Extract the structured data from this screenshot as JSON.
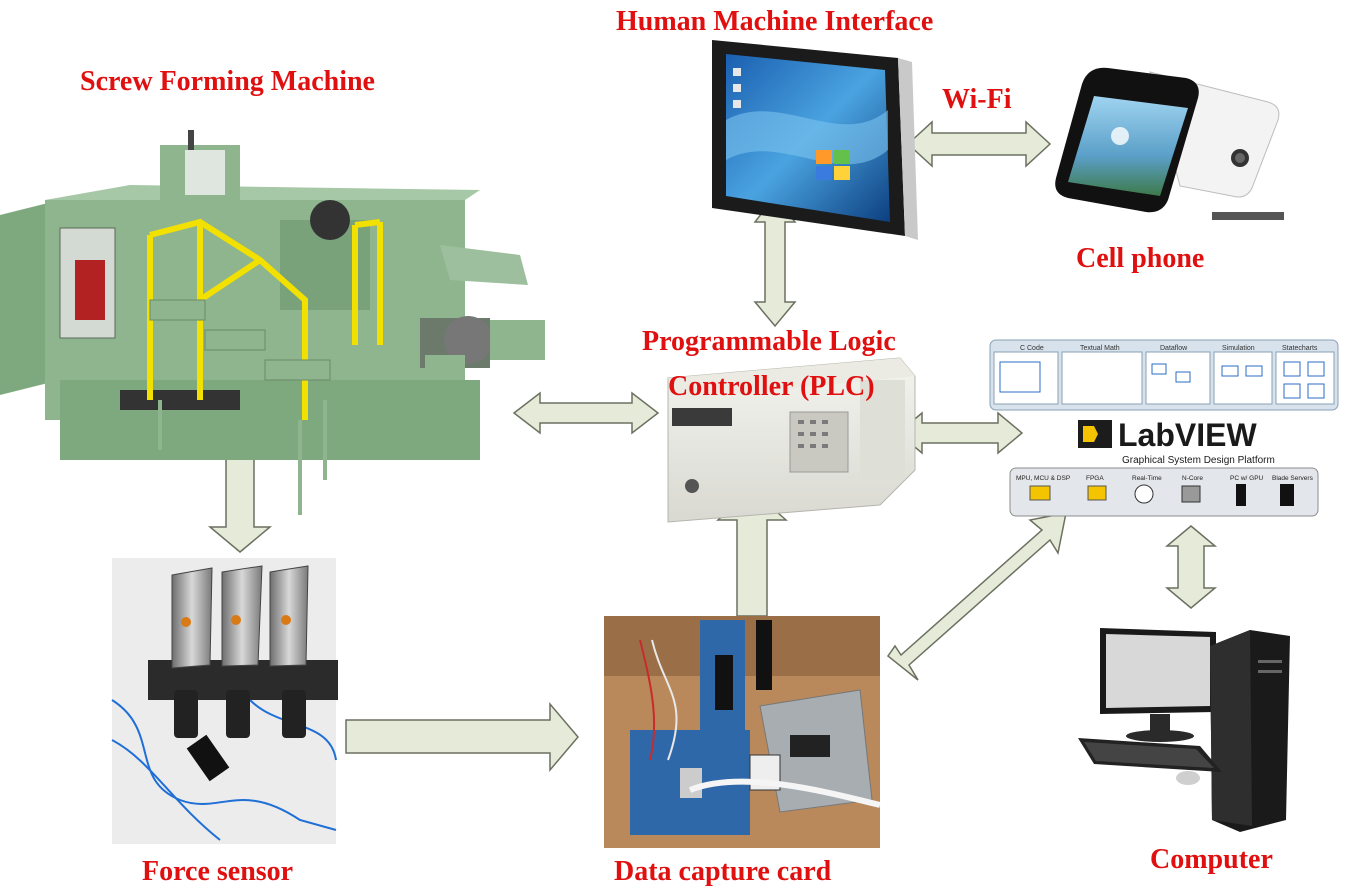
{
  "labels": {
    "hmi": "Human Machine Interface",
    "screw_machine": "Screw Forming Machine",
    "wifi": "Wi-Fi",
    "cell_phone": "Cell phone",
    "plc_line1": "Programmable Logic",
    "plc_line2": "Controller (PLC)",
    "force_sensor": "Force sensor",
    "data_capture": "Data capture card",
    "computer": "Computer"
  },
  "labview": {
    "logo": "LabVIEW",
    "tagline": "Graphical System Design Platform",
    "top_panels": [
      "C Code",
      "Textual Math",
      "Dataflow",
      "Simulation",
      "Statecharts"
    ],
    "bottom_items": [
      "MPU, MCU & DSP",
      "FPGA",
      "Real-Time",
      "N-Core",
      "PC w/ GPU",
      "Blade Servers"
    ]
  },
  "colors": {
    "label_red": "#e01010",
    "arrow_fill": "#e6ebd9",
    "arrow_stroke": "#6b7060",
    "machine_green": "#8fb58f",
    "rail_yellow": "#f2e000"
  }
}
